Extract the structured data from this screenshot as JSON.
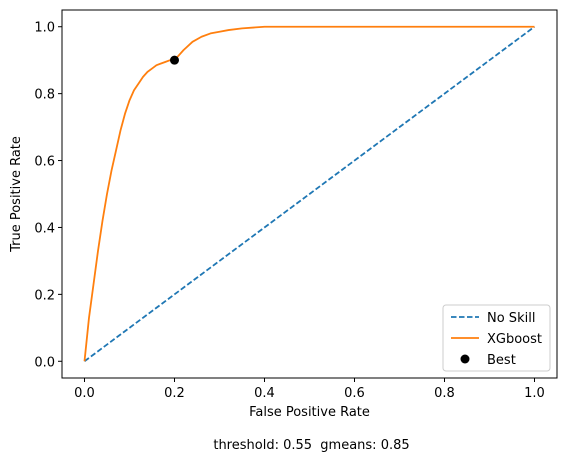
{
  "chart_data": {
    "type": "line",
    "xlabel": "False Positive Rate",
    "ylabel": "True Positive Rate",
    "xlim": [
      -0.05,
      1.05
    ],
    "ylim": [
      -0.05,
      1.05
    ],
    "xticks": [
      "0.0",
      "0.2",
      "0.4",
      "0.6",
      "0.8",
      "1.0"
    ],
    "yticks": [
      "0.0",
      "0.2",
      "0.4",
      "0.6",
      "0.8",
      "1.0"
    ],
    "grid": false,
    "legend_position": "bottom-right",
    "series": [
      {
        "name": "No Skill",
        "style": "dashed",
        "color": "#1f77b4",
        "x": [
          0,
          1
        ],
        "y": [
          0,
          1
        ]
      },
      {
        "name": "XGboost",
        "style": "solid",
        "color": "#ff7f0e",
        "x": [
          0,
          0.01,
          0.02,
          0.03,
          0.04,
          0.05,
          0.06,
          0.07,
          0.08,
          0.09,
          0.1,
          0.11,
          0.12,
          0.13,
          0.14,
          0.15,
          0.16,
          0.17,
          0.18,
          0.19,
          0.2,
          0.22,
          0.24,
          0.26,
          0.28,
          0.3,
          0.32,
          0.35,
          0.38,
          0.4,
          0.5,
          0.6,
          0.7,
          0.8,
          0.9,
          1.0
        ],
        "y": [
          0,
          0.13,
          0.23,
          0.33,
          0.42,
          0.5,
          0.57,
          0.63,
          0.69,
          0.74,
          0.78,
          0.81,
          0.83,
          0.85,
          0.865,
          0.875,
          0.885,
          0.89,
          0.895,
          0.9,
          0.9,
          0.93,
          0.955,
          0.97,
          0.98,
          0.985,
          0.99,
          0.995,
          0.998,
          1.0,
          1.0,
          1.0,
          1.0,
          1.0,
          1.0,
          1.0
        ]
      },
      {
        "name": "Best",
        "style": "marker",
        "color": "#000000",
        "x": [
          0.2
        ],
        "y": [
          0.9
        ]
      }
    ]
  },
  "footer_text": "threshold: 0.55  gmeans: 0.85"
}
